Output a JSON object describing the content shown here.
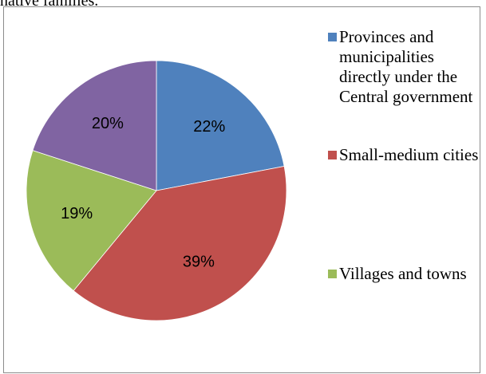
{
  "page": {
    "top_fragment": "native families."
  },
  "chart_data": {
    "type": "pie",
    "title": "",
    "start_angle_deg": 90,
    "direction": "clockwise",
    "legend_position": "right",
    "slices": [
      {
        "name": "Provinces and municipalities directly under the Central government",
        "value": 22,
        "label": "22%",
        "color": "#4f81bd"
      },
      {
        "name": "Small-medium cities",
        "value": 39,
        "label": "39%",
        "color": "#c0504d"
      },
      {
        "name": "Villages and towns",
        "value": 19,
        "label": "19%",
        "color": "#9bbb59"
      },
      {
        "name": "",
        "value": 20,
        "label": "20%",
        "color": "#8064a2"
      }
    ],
    "legend": [
      {
        "label": "Provinces and municipalities directly under the Central government",
        "color": "#4f81bd"
      },
      {
        "label": "Small-medium cities",
        "color": "#c0504d"
      },
      {
        "label": "Villages and towns",
        "color": "#9bbb59"
      }
    ]
  }
}
